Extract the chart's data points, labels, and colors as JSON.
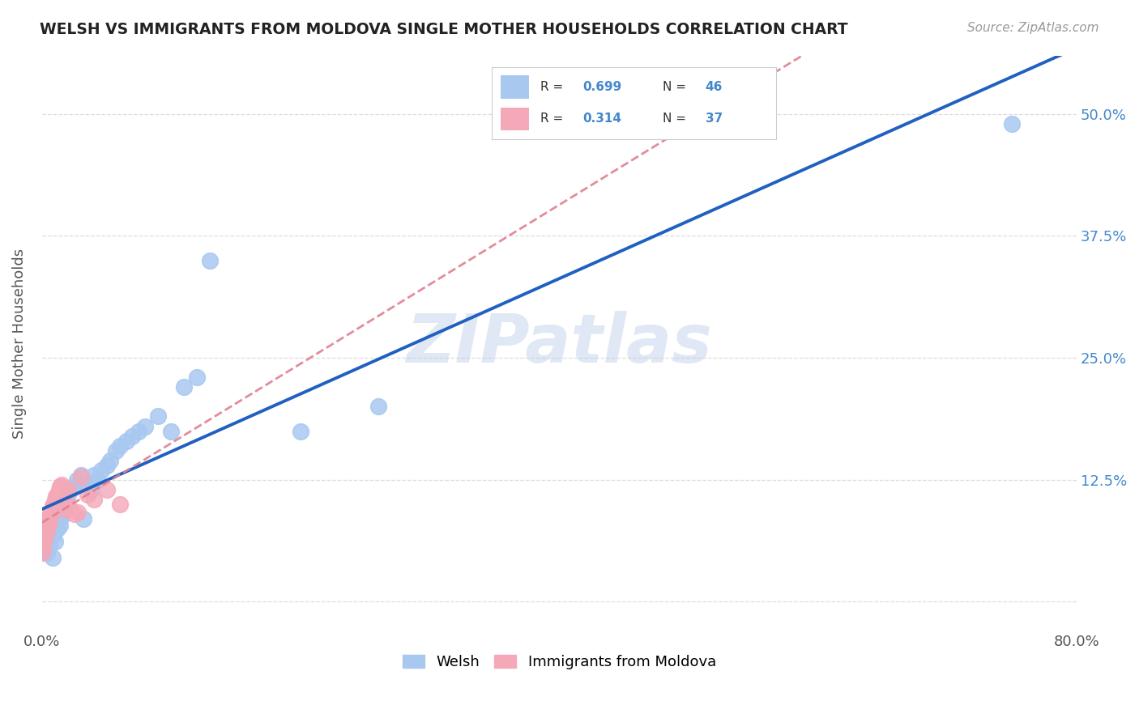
{
  "title": "WELSH VS IMMIGRANTS FROM MOLDOVA SINGLE MOTHER HOUSEHOLDS CORRELATION CHART",
  "source": "Source: ZipAtlas.com",
  "ylabel": "Single Mother Households",
  "xlim": [
    0.0,
    0.8
  ],
  "ylim": [
    -0.03,
    0.56
  ],
  "ytick_positions": [
    0.0,
    0.125,
    0.25,
    0.375,
    0.5
  ],
  "ytick_labels": [
    "",
    "12.5%",
    "25.0%",
    "37.5%",
    "50.0%"
  ],
  "xtick_positions": [
    0.0,
    0.1,
    0.2,
    0.3,
    0.4,
    0.5,
    0.6,
    0.7,
    0.8
  ],
  "xtick_labels": [
    "0.0%",
    "",
    "",
    "",
    "",
    "",
    "",
    "",
    "80.0%"
  ],
  "welsh_color": "#a8c8f0",
  "moldova_color": "#f4a8b8",
  "welsh_line_color": "#2060c0",
  "moldova_line_color": "#e08090",
  "R_welsh": 0.699,
  "N_welsh": 46,
  "R_moldova": 0.314,
  "N_moldova": 37,
  "welsh_x": [
    0.001,
    0.002,
    0.003,
    0.004,
    0.005,
    0.006,
    0.007,
    0.008,
    0.009,
    0.01,
    0.011,
    0.012,
    0.013,
    0.014,
    0.015,
    0.016,
    0.017,
    0.018,
    0.019,
    0.02,
    0.022,
    0.025,
    0.027,
    0.03,
    0.032,
    0.035,
    0.038,
    0.04,
    0.043,
    0.046,
    0.05,
    0.053,
    0.057,
    0.06,
    0.065,
    0.07,
    0.075,
    0.08,
    0.09,
    0.1,
    0.11,
    0.12,
    0.13,
    0.2,
    0.26,
    0.75
  ],
  "welsh_y": [
    0.06,
    0.055,
    0.07,
    0.05,
    0.065,
    0.058,
    0.072,
    0.045,
    0.068,
    0.062,
    0.08,
    0.075,
    0.085,
    0.078,
    0.092,
    0.088,
    0.095,
    0.1,
    0.105,
    0.11,
    0.115,
    0.118,
    0.125,
    0.13,
    0.085,
    0.12,
    0.115,
    0.13,
    0.125,
    0.135,
    0.14,
    0.145,
    0.155,
    0.16,
    0.165,
    0.17,
    0.175,
    0.18,
    0.19,
    0.175,
    0.22,
    0.23,
    0.35,
    0.175,
    0.2,
    0.49
  ],
  "moldova_x": [
    0.0,
    0.001,
    0.001,
    0.002,
    0.002,
    0.003,
    0.003,
    0.004,
    0.004,
    0.005,
    0.005,
    0.006,
    0.006,
    0.007,
    0.007,
    0.008,
    0.008,
    0.009,
    0.01,
    0.011,
    0.012,
    0.013,
    0.014,
    0.015,
    0.016,
    0.017,
    0.018,
    0.019,
    0.02,
    0.022,
    0.025,
    0.028,
    0.03,
    0.035,
    0.04,
    0.05,
    0.06
  ],
  "moldova_y": [
    0.05,
    0.055,
    0.06,
    0.065,
    0.068,
    0.07,
    0.072,
    0.075,
    0.078,
    0.08,
    0.082,
    0.085,
    0.088,
    0.09,
    0.092,
    0.095,
    0.098,
    0.1,
    0.105,
    0.108,
    0.11,
    0.115,
    0.118,
    0.12,
    0.1,
    0.095,
    0.105,
    0.11,
    0.115,
    0.095,
    0.09,
    0.092,
    0.128,
    0.11,
    0.105,
    0.115,
    0.1
  ],
  "watermark": "ZIPatlas",
  "background_color": "#ffffff",
  "grid_color": "#dddddd",
  "legend_label_welsh": "Welsh",
  "legend_label_moldova": "Immigrants from Moldova"
}
